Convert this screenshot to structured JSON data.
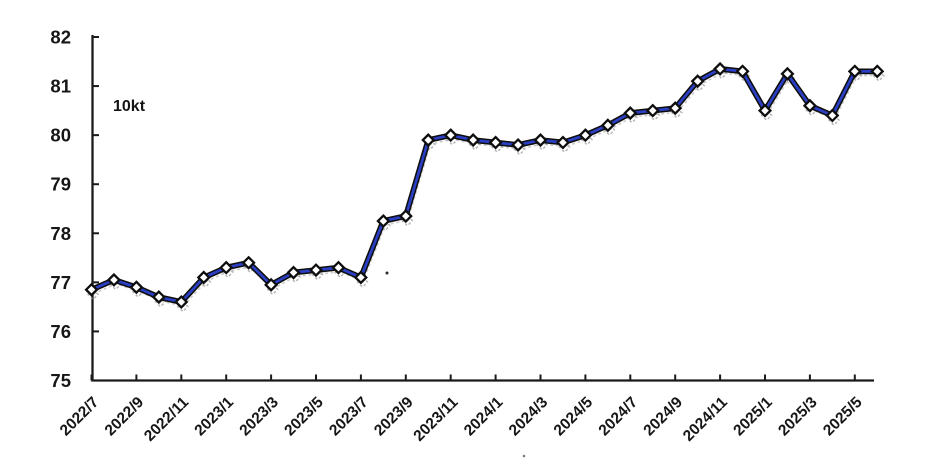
{
  "chart_data": {
    "type": "line",
    "title": "",
    "unit_label": "10kt",
    "xlabel": "",
    "ylabel": "",
    "ylim": [
      75,
      82
    ],
    "grid": "off",
    "legend": "none",
    "line_color": "#2b3fc4",
    "line_outline_color": "#0e0e0e",
    "marker": "white-diamond-black-outline",
    "axis_color": "#1a1a1a",
    "y_ticks": [
      75,
      76,
      77,
      78,
      79,
      80,
      81,
      82
    ],
    "x_tick_labels": [
      "2022/7",
      "2022/9",
      "2022/11",
      "2023/1",
      "2023/3",
      "2023/5",
      "2023/7",
      "2023/9",
      "2023/11",
      "2024/1",
      "2024/3",
      "2024/5",
      "2024/7",
      "2024/9",
      "2024/11",
      "2025/1",
      "2025/3",
      "2025/5"
    ],
    "x": [
      "2022/7",
      "2022/8",
      "2022/9",
      "2022/10",
      "2022/11",
      "2022/12",
      "2023/1",
      "2023/2",
      "2023/3",
      "2023/4",
      "2023/5",
      "2023/6",
      "2023/7",
      "2023/8",
      "2023/9",
      "2023/10",
      "2023/11",
      "2023/12",
      "2024/1",
      "2024/2",
      "2024/3",
      "2024/4",
      "2024/5",
      "2024/6",
      "2024/7",
      "2024/8",
      "2024/9",
      "2024/10",
      "2024/11",
      "2024/12",
      "2025/1",
      "2025/2",
      "2025/3",
      "2025/4",
      "2025/5",
      "2025/6"
    ],
    "values": [
      76.85,
      77.05,
      76.9,
      76.7,
      76.6,
      77.1,
      77.3,
      77.4,
      76.95,
      77.2,
      77.25,
      77.3,
      77.1,
      78.25,
      78.35,
      79.9,
      80.0,
      79.9,
      79.85,
      79.8,
      79.9,
      79.85,
      80.0,
      80.2,
      80.45,
      80.5,
      80.55,
      81.1,
      81.35,
      81.3,
      80.5,
      81.25,
      80.6,
      80.4,
      81.3,
      81.3
    ]
  }
}
